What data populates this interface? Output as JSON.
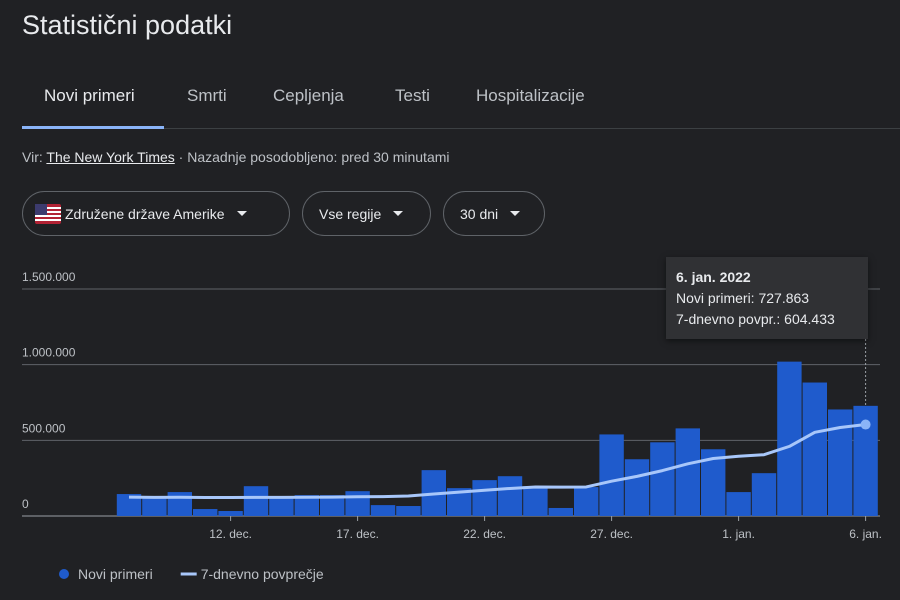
{
  "header": {
    "title": "Statistični podatki"
  },
  "tabs": [
    "Novi primeri",
    "Smrti",
    "Cepljenja",
    "Testi",
    "Hospitalizacije"
  ],
  "source": {
    "prefix": "Vir:",
    "link": "The New York Times",
    "updated": "· Nazadnje posodobljeno: pred 30 minutami"
  },
  "filters": [
    "Združene države Amerike",
    "Vse regije",
    "30 dni"
  ],
  "tooltip": {
    "title": "6. jan. 2022",
    "rows": [
      "Novi primeri: 727.863",
      "7-dnevno povpr.: 604.433"
    ]
  },
  "chart_data": {
    "type": "bar",
    "categories": [
      null,
      null,
      null,
      null,
      "12. dec.",
      null,
      null,
      null,
      null,
      "17. dec.",
      null,
      null,
      null,
      null,
      "22. dec.",
      null,
      null,
      null,
      null,
      "27. dec.",
      null,
      null,
      null,
      null,
      "1. jan.",
      null,
      null,
      null,
      null,
      "6. jan."
    ],
    "series": [
      {
        "name": "Novi primeri",
        "type": "bar",
        "color": "#1f5bcc",
        "values": [
          145000,
          118000,
          158000,
          46000,
          33000,
          197000,
          125000,
          138000,
          138000,
          164000,
          72000,
          66000,
          303000,
          184000,
          237000,
          263000,
          197000,
          53000,
          191000,
          539000,
          375000,
          487000,
          579000,
          441000,
          158000,
          283000,
          1020000,
          882000,
          704000,
          727863
        ]
      },
      {
        "name": "7-dnevno povprečje",
        "type": "line",
        "color": "#a8c7fa",
        "values": [
          125000,
          123000,
          124000,
          122000,
          122000,
          123000,
          123000,
          124000,
          125000,
          127000,
          128000,
          132000,
          145000,
          158000,
          170000,
          182000,
          192000,
          191000,
          192000,
          230000,
          262000,
          300000,
          345000,
          380000,
          395000,
          405000,
          460000,
          553000,
          585000,
          604433
        ]
      }
    ],
    "ylim": [
      0,
      1500000
    ],
    "yticks": [
      0,
      {
        "value": 500000,
        "label": "500.000"
      },
      {
        "value": 1000000,
        "label": "1.000.000"
      },
      {
        "value": 1500000,
        "label": "1.500.000"
      }
    ],
    "grid": true,
    "legend": "bottom-left"
  }
}
